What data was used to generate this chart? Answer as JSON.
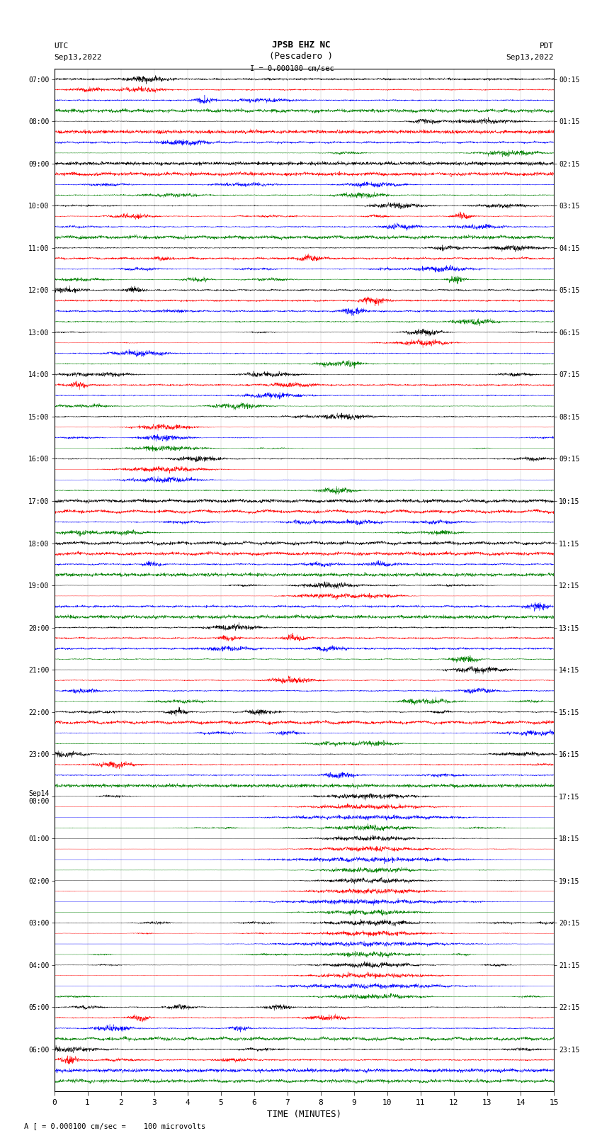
{
  "title_line1": "JPSB EHZ NC",
  "title_line2": "(Pescadero )",
  "scale_label": "I = 0.000100 cm/sec",
  "utc_line1": "UTC",
  "utc_line2": "Sep13,2022",
  "pdt_line1": "PDT",
  "pdt_line2": "Sep13,2022",
  "bottom_label": "A [ = 0.000100 cm/sec =    100 microvolts",
  "xlabel": "TIME (MINUTES)",
  "left_times": [
    "07:00",
    "08:00",
    "09:00",
    "10:00",
    "11:00",
    "12:00",
    "13:00",
    "14:00",
    "15:00",
    "16:00",
    "17:00",
    "18:00",
    "19:00",
    "20:00",
    "21:00",
    "22:00",
    "23:00",
    "Sep14\n00:00",
    "01:00",
    "02:00",
    "03:00",
    "04:00",
    "05:00",
    "06:00"
  ],
  "right_times": [
    "00:15",
    "01:15",
    "02:15",
    "03:15",
    "04:15",
    "05:15",
    "06:15",
    "07:15",
    "08:15",
    "09:15",
    "10:15",
    "11:15",
    "12:15",
    "13:15",
    "14:15",
    "15:15",
    "16:15",
    "17:15",
    "18:15",
    "19:15",
    "20:15",
    "21:15",
    "22:15",
    "23:15"
  ],
  "n_hours": 24,
  "n_rows_per_hour": 4,
  "colors": [
    "black",
    "red",
    "blue",
    "green"
  ],
  "bg_color": "white",
  "xmin": 0,
  "xmax": 15,
  "xticks": [
    0,
    1,
    2,
    3,
    4,
    5,
    6,
    7,
    8,
    9,
    10,
    11,
    12,
    13,
    14,
    15
  ],
  "figsize": [
    8.5,
    16.13
  ],
  "dpi": 100,
  "n_points": 3000,
  "trace_amplitude": 0.38,
  "noise_base": 0.08,
  "lw": 0.3
}
